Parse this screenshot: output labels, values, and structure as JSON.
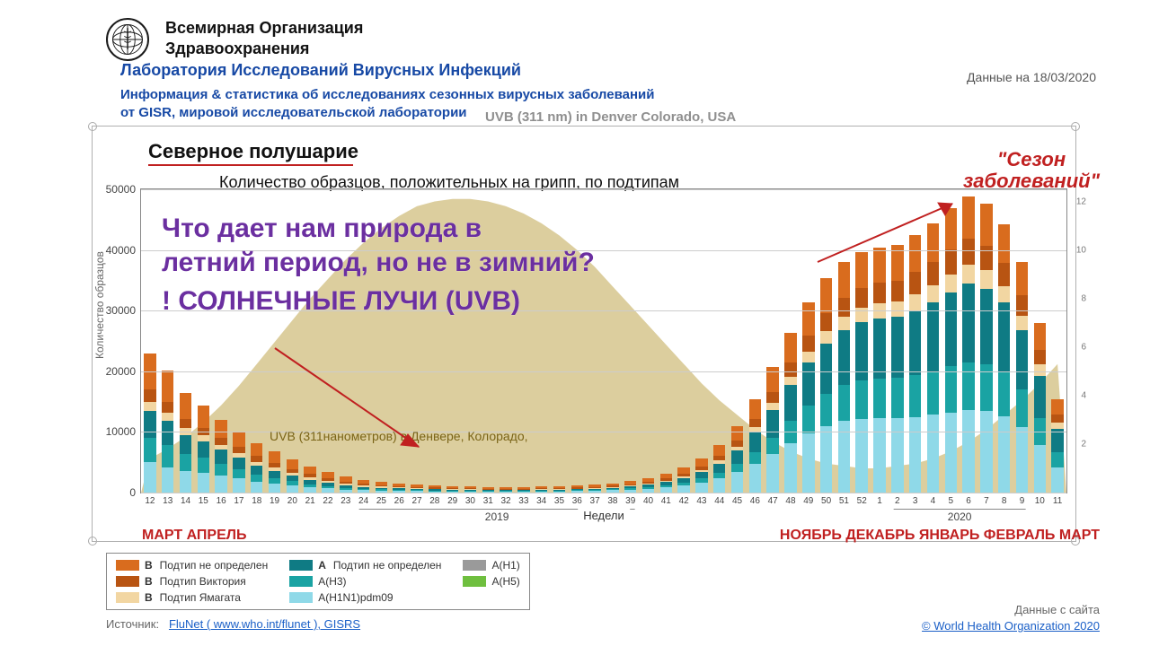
{
  "header": {
    "org_line1": "Всемирная Организация",
    "org_line2": "Здравоохранения",
    "lab": "Лаборатория Исследований Вирусных Инфекций",
    "info1": "Информация & статистика об исследованиях сезонных вирусных заболеваний",
    "info2": "от GISR, мировой исследовательской лаборатории",
    "date": "Данные на 18/03/2020",
    "uvb_en": "UVB (311 nm) in Denver Colorado, USA"
  },
  "chart": {
    "region": "Северное полушарие",
    "subtitle": "Количество образцов, положительных на грипп, по подтипам",
    "season_label": "\"Сезон заболеваний\"",
    "ylabel": "Количество образцов",
    "ylim": [
      0,
      50000
    ],
    "ytick_step": 10000,
    "y2_ticks": [
      2,
      4,
      6,
      8,
      10,
      12
    ],
    "xaxis_title": "Недели",
    "year_left": "2019",
    "year_right": "2020",
    "months_left": "МАРТ АПРЕЛЬ",
    "months_right": "НОЯБРЬ ДЕКАБРЬ ЯНВАРЬ ФЕВРАЛЬ МАРТ",
    "uvb_ru": "UVB (311нанометров) в Денвере, Колорадо,",
    "colors": {
      "b_undef": "#d96c1e",
      "b_vic": "#b85412",
      "b_yam": "#f2d6a2",
      "a_undef": "#0f7b84",
      "a_h3": "#1aa3a3",
      "a_h1n1": "#8fd9e8",
      "a_h1": "#9a9a9a",
      "a_h5": "#6fbf3f",
      "uvb_fill": "#bfa64f",
      "uvb_opacity": 0.55,
      "grid": "#cccccc",
      "axis": "#888888",
      "purple": "#6b2fa0",
      "red": "#c02020",
      "blue": "#1749a5"
    },
    "weeks": [
      "12",
      "13",
      "14",
      "15",
      "16",
      "17",
      "18",
      "19",
      "20",
      "21",
      "22",
      "23",
      "24",
      "25",
      "26",
      "27",
      "28",
      "29",
      "30",
      "31",
      "32",
      "33",
      "34",
      "35",
      "36",
      "37",
      "38",
      "39",
      "40",
      "41",
      "42",
      "43",
      "44",
      "45",
      "46",
      "47",
      "48",
      "49",
      "50",
      "51",
      "52",
      "1",
      "2",
      "3",
      "4",
      "5",
      "6",
      "7",
      "8",
      "9",
      "10",
      "11"
    ],
    "series_comment": "Stacked values per week (approx. read from chart, totals in samples). Order bottom→top: a_h1n1, a_h3, a_undef, b_yam, b_vic, b_undef",
    "stacks": [
      [
        5000,
        4000,
        4500,
        1500,
        2000,
        6000
      ],
      [
        4200,
        3600,
        4000,
        1300,
        1800,
        5200
      ],
      [
        3500,
        2800,
        3200,
        1100,
        1600,
        4300
      ],
      [
        3200,
        2500,
        2800,
        900,
        1300,
        3600
      ],
      [
        2800,
        2000,
        2300,
        800,
        1100,
        3000
      ],
      [
        2300,
        1600,
        1900,
        700,
        1000,
        2600
      ],
      [
        1800,
        1200,
        1500,
        600,
        900,
        2200
      ],
      [
        1500,
        900,
        1200,
        500,
        800,
        1900
      ],
      [
        1200,
        700,
        900,
        400,
        700,
        1600
      ],
      [
        900,
        500,
        700,
        350,
        600,
        1300
      ],
      [
        700,
        400,
        500,
        300,
        500,
        1000
      ],
      [
        500,
        300,
        400,
        250,
        400,
        800
      ],
      [
        400,
        250,
        300,
        200,
        300,
        650
      ],
      [
        350,
        200,
        250,
        180,
        250,
        550
      ],
      [
        300,
        180,
        220,
        160,
        220,
        480
      ],
      [
        250,
        150,
        200,
        140,
        200,
        420
      ],
      [
        220,
        140,
        180,
        130,
        180,
        380
      ],
      [
        200,
        120,
        160,
        120,
        160,
        340
      ],
      [
        180,
        110,
        150,
        110,
        150,
        320
      ],
      [
        170,
        100,
        140,
        100,
        140,
        300
      ],
      [
        170,
        100,
        140,
        100,
        140,
        300
      ],
      [
        180,
        100,
        140,
        100,
        140,
        300
      ],
      [
        200,
        110,
        150,
        100,
        150,
        310
      ],
      [
        220,
        120,
        160,
        110,
        160,
        320
      ],
      [
        250,
        130,
        180,
        110,
        170,
        340
      ],
      [
        300,
        150,
        200,
        120,
        180,
        380
      ],
      [
        380,
        180,
        240,
        130,
        200,
        430
      ],
      [
        500,
        220,
        300,
        150,
        230,
        510
      ],
      [
        650,
        280,
        380,
        180,
        280,
        620
      ],
      [
        900,
        360,
        500,
        220,
        340,
        780
      ],
      [
        1200,
        480,
        700,
        280,
        430,
        1000
      ],
      [
        1700,
        650,
        1000,
        360,
        560,
        1350
      ],
      [
        2400,
        900,
        1500,
        480,
        750,
        1800
      ],
      [
        3400,
        1300,
        2200,
        650,
        1000,
        2400
      ],
      [
        4800,
        1900,
        3200,
        880,
        1350,
        3200
      ],
      [
        6400,
        2700,
        4500,
        1150,
        1800,
        4100
      ],
      [
        8200,
        3600,
        5900,
        1450,
        2250,
        4900
      ],
      [
        9800,
        4500,
        7200,
        1750,
        2650,
        5500
      ],
      [
        11000,
        5300,
        8300,
        2000,
        2950,
        5800
      ],
      [
        11800,
        5900,
        9100,
        2200,
        3150,
        5900
      ],
      [
        12200,
        6300,
        9600,
        2350,
        3300,
        5900
      ],
      [
        12300,
        6500,
        9900,
        2450,
        3400,
        5900
      ],
      [
        12300,
        6600,
        10100,
        2500,
        3450,
        5900
      ],
      [
        12500,
        6900,
        10700,
        2650,
        3600,
        6100
      ],
      [
        12800,
        7200,
        11400,
        2800,
        3800,
        6400
      ],
      [
        13200,
        7600,
        12200,
        3000,
        4050,
        6800
      ],
      [
        13600,
        7900,
        12900,
        3150,
        4250,
        7100
      ],
      [
        13400,
        7700,
        12500,
        3050,
        4100,
        6900
      ],
      [
        12600,
        7200,
        11500,
        2800,
        3800,
        6400
      ],
      [
        10800,
        6200,
        9800,
        2400,
        3300,
        5600
      ],
      [
        7800,
        4500,
        7000,
        1800,
        2500,
        4300
      ],
      [
        4200,
        2500,
        3800,
        1000,
        1400,
        2500
      ]
    ],
    "uvb_curve": [
      1.4,
      1.8,
      2.3,
      2.9,
      3.6,
      4.4,
      5.3,
      6.2,
      7.1,
      8.0,
      8.8,
      9.6,
      10.3,
      10.9,
      11.4,
      11.8,
      12.0,
      12.1,
      12.1,
      12.0,
      11.8,
      11.5,
      11.1,
      10.6,
      10.0,
      9.3,
      8.5,
      7.7,
      6.9,
      6.1,
      5.3,
      4.5,
      3.8,
      3.2,
      2.6,
      2.1,
      1.7,
      1.4,
      1.2,
      1.1,
      1.0,
      1.0,
      1.1,
      1.2,
      1.4,
      1.7,
      2.1,
      2.6,
      3.2,
      3.8,
      4.5,
      5.3
    ],
    "uvb_max": 12.5
  },
  "overlay": {
    "line1": "Что дает нам природа в",
    "line2": "летний период, но не в зимний?",
    "line3": "! СОЛНЕЧНЫЕ ЛУЧИ (UVB)"
  },
  "legend": {
    "items": [
      {
        "color": "#d96c1e",
        "prefix": "B",
        "label": "Подтип не определен"
      },
      {
        "color": "#b85412",
        "prefix": "B",
        "label": "Подтип Виктория"
      },
      {
        "color": "#f2d6a2",
        "prefix": "B",
        "label": "Подтип Ямагата"
      },
      {
        "color": "#0f7b84",
        "prefix": "A",
        "label": "Подтип не определен"
      },
      {
        "color": "#1aa3a3",
        "prefix": "",
        "label": "A(H3)"
      },
      {
        "color": "#8fd9e8",
        "prefix": "",
        "label": "A(H1N1)pdm09"
      },
      {
        "color": "#9a9a9a",
        "prefix": "",
        "label": "A(H1)"
      },
      {
        "color": "#6fbf3f",
        "prefix": "",
        "label": "A(H5)"
      }
    ]
  },
  "footer": {
    "source_label": "Источник:",
    "source_link": "FluNet ( www.who.int/flunet ), GISRS",
    "site_label": "Данные с сайта",
    "copyright": "© World Health Organization 2020"
  }
}
